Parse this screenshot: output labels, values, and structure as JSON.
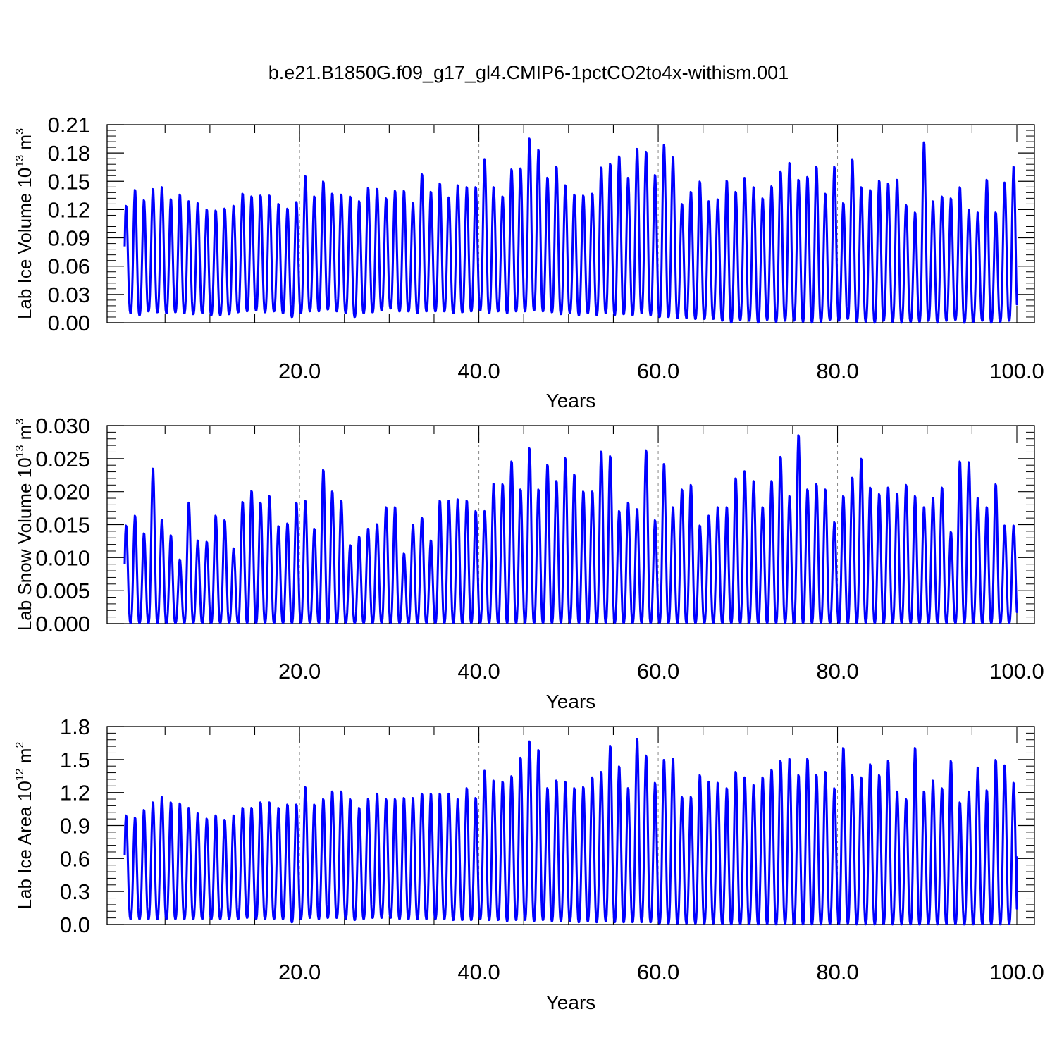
{
  "title": "b.e21.B1850G.f09_g17_gl4.CMIP6-1pctCO2to4x-withism.001",
  "colors": {
    "line": "#0000ff",
    "axes": "#000000",
    "grid": "#888888"
  },
  "chart_data": [
    {
      "type": "line",
      "ylabel_main": "Lab Ice Volume 10",
      "ylabel_exp1": "13",
      "ylabel_unit": " m",
      "ylabel_exp2": "3",
      "xlabel": "Years",
      "xlim": [
        0.5,
        100
      ],
      "ylim": [
        0,
        0.21
      ],
      "xticks": [
        20,
        40,
        60,
        80,
        100
      ],
      "xtick_labels": [
        "20.0",
        "40.0",
        "60.0",
        "80.0",
        "100.0"
      ],
      "yticks": [
        0,
        0.03,
        0.06,
        0.09,
        0.12,
        0.15,
        0.18,
        0.21
      ],
      "ytick_labels": [
        "0.00",
        "0.03",
        "0.06",
        "0.09",
        "0.12",
        "0.15",
        "0.18",
        "0.21"
      ],
      "vgrid": [
        20,
        40,
        60,
        80
      ],
      "series": [
        {
          "x0": 0.5,
          "period": 1,
          "peaks": [
            0.125,
            0.142,
            0.131,
            0.143,
            0.145,
            0.132,
            0.137,
            0.13,
            0.128,
            0.121,
            0.12,
            0.122,
            0.125,
            0.138,
            0.135,
            0.136,
            0.136,
            0.127,
            0.122,
            0.129,
            0.157,
            0.135,
            0.151,
            0.138,
            0.137,
            0.135,
            0.13,
            0.144,
            0.143,
            0.133,
            0.141,
            0.141,
            0.128,
            0.159,
            0.14,
            0.149,
            0.134,
            0.147,
            0.145,
            0.145,
            0.175,
            0.145,
            0.135,
            0.164,
            0.165,
            0.197,
            0.185,
            0.155,
            0.167,
            0.147,
            0.137,
            0.136,
            0.138,
            0.166,
            0.17,
            0.178,
            0.155,
            0.186,
            0.183,
            0.158,
            0.19,
            0.177,
            0.127,
            0.14,
            0.151,
            0.13,
            0.132,
            0.152,
            0.14,
            0.155,
            0.145,
            0.133,
            0.146,
            0.162,
            0.171,
            0.153,
            0.156,
            0.167,
            0.138,
            0.167,
            0.128,
            0.175,
            0.145,
            0.142,
            0.152,
            0.149,
            0.153,
            0.126,
            0.118,
            0.193,
            0.13,
            0.135,
            0.133,
            0.145,
            0.121,
            0.118,
            0.153,
            0.118,
            0.15,
            0.167,
            0.128
          ],
          "troughs": [
            0.01,
            0.008,
            0.012,
            0.011,
            0.01,
            0.011,
            0.01,
            0.009,
            0.01,
            0.008,
            0.008,
            0.009,
            0.011,
            0.012,
            0.013,
            0.011,
            0.012,
            0.01,
            0.006,
            0.01,
            0.012,
            0.012,
            0.014,
            0.012,
            0.01,
            0.006,
            0.01,
            0.011,
            0.013,
            0.015,
            0.012,
            0.012,
            0.01,
            0.012,
            0.012,
            0.012,
            0.01,
            0.011,
            0.012,
            0.013,
            0.01,
            0.012,
            0.01,
            0.012,
            0.012,
            0.013,
            0.012,
            0.011,
            0.009,
            0.01,
            0.008,
            0.01,
            0.008,
            0.01,
            0.008,
            0.009,
            0.008,
            0.01,
            0.008,
            0.006,
            0.006,
            0.005,
            0.005,
            0.004,
            0.004,
            0.004,
            0.002,
            0.0,
            0.003,
            0.002,
            0.0,
            0.003,
            0.001,
            0.002,
            0.002,
            0.001,
            0.0,
            0.001,
            0.003,
            0.002,
            0.004,
            0.001,
            0.001,
            0.0,
            0.002,
            0.001,
            0.0,
            0.001,
            0.001,
            0.002,
            0.0,
            0.002,
            0.003,
            0.0,
            0.001,
            0.002,
            0.0,
            0.001,
            0.002,
            0.001,
            0.002
          ],
          "end_value": 0.028
        }
      ]
    },
    {
      "type": "line",
      "ylabel_main": "Lab Snow Volume 10",
      "ylabel_exp1": "13",
      "ylabel_unit": " m",
      "ylabel_exp2": "3",
      "xlabel": "Years",
      "xlim": [
        0.5,
        100
      ],
      "ylim": [
        0,
        0.03
      ],
      "xticks": [
        20,
        40,
        60,
        80,
        100
      ],
      "xtick_labels": [
        "20.0",
        "40.0",
        "60.0",
        "80.0",
        "100.0"
      ],
      "yticks": [
        0,
        0.005,
        0.01,
        0.015,
        0.02,
        0.025,
        0.03
      ],
      "ytick_labels": [
        "0.000",
        "0.005",
        "0.010",
        "0.015",
        "0.020",
        "0.025",
        "0.030"
      ],
      "vgrid": [
        20,
        40,
        60,
        80
      ],
      "series": [
        {
          "x0": 0.5,
          "period": 1,
          "peaks": [
            0.015,
            0.0165,
            0.0138,
            0.0237,
            0.0159,
            0.0135,
            0.0098,
            0.0185,
            0.0127,
            0.0125,
            0.0165,
            0.0158,
            0.0115,
            0.0186,
            0.0203,
            0.0185,
            0.0195,
            0.0149,
            0.0153,
            0.0185,
            0.0188,
            0.0145,
            0.0235,
            0.0202,
            0.0188,
            0.012,
            0.0133,
            0.0145,
            0.0152,
            0.0178,
            0.0178,
            0.0107,
            0.0151,
            0.0162,
            0.0127,
            0.0188,
            0.0188,
            0.019,
            0.0188,
            0.0172,
            0.0172,
            0.0214,
            0.0213,
            0.0248,
            0.0205,
            0.0268,
            0.0205,
            0.0243,
            0.0218,
            0.0253,
            0.0228,
            0.0202,
            0.0202,
            0.0263,
            0.0256,
            0.0172,
            0.0185,
            0.0175,
            0.0265,
            0.0158,
            0.0244,
            0.0178,
            0.0205,
            0.0212,
            0.015,
            0.0165,
            0.0178,
            0.0178,
            0.0222,
            0.0233,
            0.0218,
            0.0178,
            0.0218,
            0.0255,
            0.0195,
            0.0288,
            0.0205,
            0.0213,
            0.0205,
            0.0155,
            0.0195,
            0.0223,
            0.0252,
            0.0208,
            0.0198,
            0.0208,
            0.0198,
            0.0212,
            0.0195,
            0.0178,
            0.0192,
            0.0208,
            0.014,
            0.0248,
            0.0247,
            0.0192,
            0.0178,
            0.0213,
            0.015,
            0.015,
            0.015
          ],
          "troughs": [
            0.0001,
            0.0001,
            0.0001,
            0.0001,
            0.0001,
            0.0001,
            0.0001,
            0.0001,
            0.0001,
            0.0001,
            0.0001,
            0.0001,
            0.0001,
            0.0001,
            0.0001,
            0.0001,
            0.0001,
            0.0001,
            0.0001,
            0.0001,
            0.0001,
            0.0001,
            0.0001,
            0.0001,
            0.0001,
            0.0001,
            0.0001,
            0.0001,
            0.0001,
            0.0001,
            0.0001,
            0.0001,
            0.0001,
            0.0001,
            0.0001,
            0.0001,
            0.0001,
            0.0001,
            0.0001,
            0.0001,
            0.0001,
            0.0001,
            0.0001,
            0.0001,
            0.0001,
            0.0001,
            0.0001,
            0.0001,
            0.0001,
            0.0001,
            0.0001,
            0.0001,
            0.0001,
            0.0001,
            0.0001,
            0.0001,
            0.0001,
            0.0001,
            0.0001,
            0.0001,
            0.0001,
            0.0001,
            0.0001,
            0.0001,
            0.0001,
            0.0001,
            0.0001,
            0.0001,
            0.0001,
            0.0001,
            0.0001,
            0.0001,
            0.0001,
            0.0001,
            0.0001,
            0.0001,
            0.0001,
            0.0001,
            0.0001,
            0.0001,
            0.0001,
            0.0001,
            0.0001,
            0.0001,
            0.0001,
            0.0001,
            0.0001,
            0.0001,
            0.0001,
            0.0001,
            0.0001,
            0.0001,
            0.0001,
            0.0001,
            0.0001,
            0.0001,
            0.0001,
            0.0001,
            0.0001,
            0.0001,
            0.0001
          ],
          "end_value": 0.0027
        }
      ]
    },
    {
      "type": "line",
      "ylabel_main": "Lab Ice Area 10",
      "ylabel_exp1": "12",
      "ylabel_unit": " m",
      "ylabel_exp2": "2",
      "xlabel": "Years",
      "xlim": [
        0.5,
        100
      ],
      "ylim": [
        0,
        1.8
      ],
      "xticks": [
        20,
        40,
        60,
        80,
        100
      ],
      "xtick_labels": [
        "20.0",
        "40.0",
        "60.0",
        "80.0",
        "100.0"
      ],
      "yticks": [
        0,
        0.3,
        0.6,
        0.9,
        1.2,
        1.5,
        1.8
      ],
      "ytick_labels": [
        "0.0",
        "0.3",
        "0.6",
        "0.9",
        "1.2",
        "1.5",
        "1.8"
      ],
      "vgrid": [
        20,
        40,
        60,
        80
      ],
      "series": [
        {
          "x0": 0.5,
          "period": 1,
          "peaks": [
            1.0,
            0.98,
            1.05,
            1.12,
            1.17,
            1.12,
            1.11,
            1.07,
            1.02,
            0.97,
            1.0,
            0.96,
            1.0,
            1.07,
            1.07,
            1.12,
            1.12,
            1.07,
            1.1,
            1.1,
            1.26,
            1.1,
            1.15,
            1.22,
            1.22,
            1.15,
            1.07,
            1.15,
            1.2,
            1.15,
            1.15,
            1.16,
            1.16,
            1.2,
            1.2,
            1.2,
            1.2,
            1.15,
            1.25,
            1.16,
            1.41,
            1.32,
            1.31,
            1.36,
            1.53,
            1.68,
            1.6,
            1.25,
            1.32,
            1.31,
            1.25,
            1.26,
            1.35,
            1.4,
            1.64,
            1.45,
            1.25,
            1.7,
            1.55,
            1.3,
            1.51,
            1.52,
            1.17,
            1.17,
            1.37,
            1.31,
            1.3,
            1.25,
            1.4,
            1.35,
            1.28,
            1.35,
            1.42,
            1.5,
            1.52,
            1.37,
            1.52,
            1.37,
            1.4,
            1.25,
            1.62,
            1.37,
            1.35,
            1.47,
            1.37,
            1.5,
            1.22,
            1.15,
            1.62,
            1.22,
            1.32,
            1.25,
            1.5,
            1.12,
            1.22,
            1.44,
            1.23,
            1.51,
            1.46,
            1.3,
            1.0
          ],
          "troughs": [
            0.05,
            0.05,
            0.05,
            0.05,
            0.05,
            0.05,
            0.05,
            0.05,
            0.05,
            0.05,
            0.05,
            0.05,
            0.05,
            0.06,
            0.05,
            0.05,
            0.05,
            0.05,
            0.02,
            0.05,
            0.06,
            0.05,
            0.06,
            0.06,
            0.05,
            0.04,
            0.05,
            0.06,
            0.06,
            0.06,
            0.05,
            0.05,
            0.05,
            0.05,
            0.05,
            0.05,
            0.04,
            0.04,
            0.04,
            0.05,
            0.04,
            0.04,
            0.03,
            0.04,
            0.04,
            0.03,
            0.04,
            0.03,
            0.03,
            0.03,
            0.02,
            0.03,
            0.02,
            0.03,
            0.02,
            0.02,
            0.02,
            0.02,
            0.02,
            0.01,
            0.01,
            0.01,
            0.01,
            0.01,
            0.01,
            0.01,
            0.005,
            0.0,
            0.005,
            0.005,
            0.0,
            0.005,
            0.0,
            0.005,
            0.005,
            0.0,
            0.0,
            0.0,
            0.005,
            0.005,
            0.01,
            0.0,
            0.0,
            0.0,
            0.005,
            0.0,
            0.0,
            0.0,
            0.0,
            0.005,
            0.0,
            0.005,
            0.005,
            0.0,
            0.0,
            0.005,
            0.0,
            0.0,
            0.005,
            0.0,
            0.005
          ],
          "end_value": 0.62
        }
      ]
    }
  ]
}
